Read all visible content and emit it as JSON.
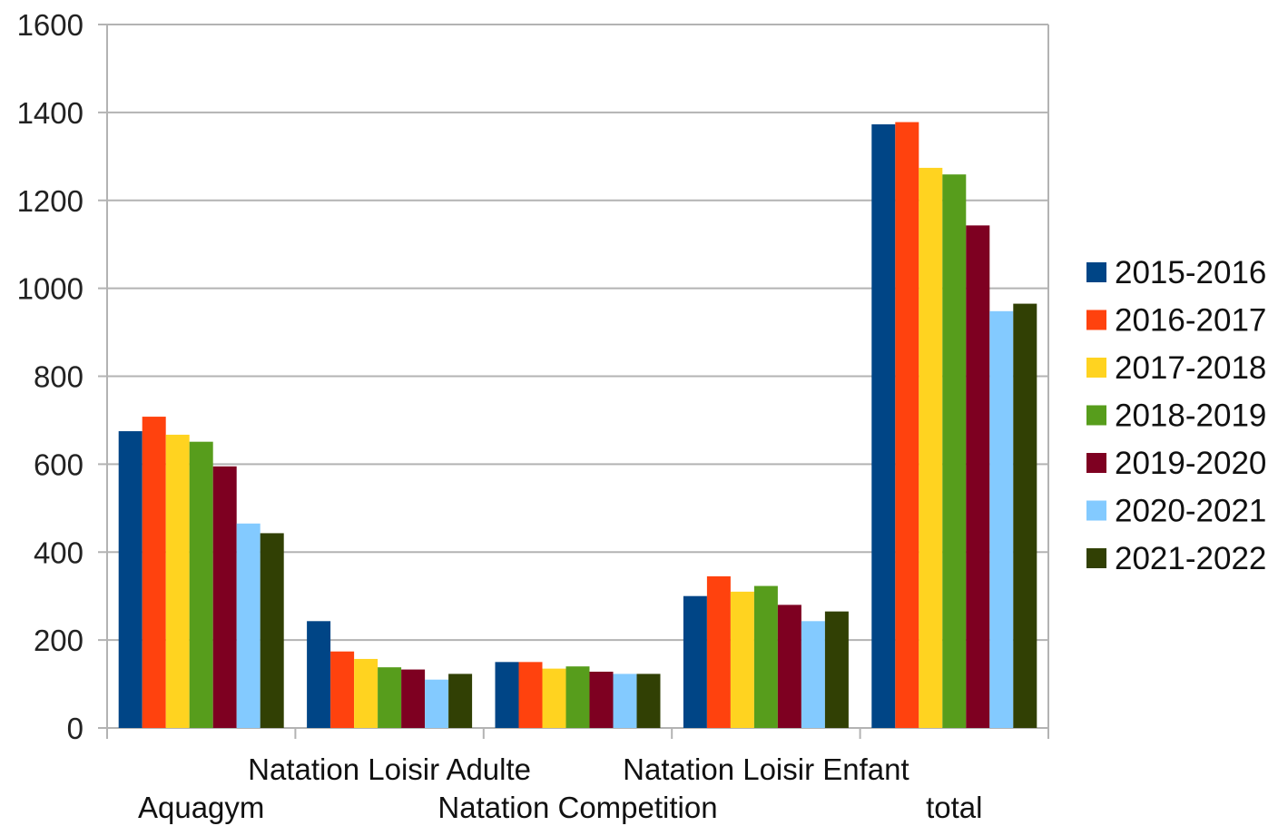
{
  "chart_data": {
    "type": "bar",
    "title": "",
    "xlabel": "",
    "ylabel": "",
    "ylim": [
      0,
      1600
    ],
    "yticks": [
      0,
      200,
      400,
      600,
      800,
      1000,
      1200,
      1400,
      1600
    ],
    "grid": true,
    "legend_position": "right",
    "categories": [
      "Aquagym",
      "Natation Loisir Adulte",
      "Natation Competition",
      "Natation Loisir Enfant",
      "total"
    ],
    "series": [
      {
        "name": "2015-2016",
        "color": "#004586",
        "values": [
          675,
          243,
          150,
          300,
          1373
        ]
      },
      {
        "name": "2016-2017",
        "color": "#ff420e",
        "values": [
          708,
          174,
          150,
          345,
          1378
        ]
      },
      {
        "name": "2017-2018",
        "color": "#ffd320",
        "values": [
          667,
          157,
          135,
          310,
          1274
        ]
      },
      {
        "name": "2018-2019",
        "color": "#579d1c",
        "values": [
          651,
          138,
          140,
          323,
          1259
        ]
      },
      {
        "name": "2019-2020",
        "color": "#7e0021",
        "values": [
          595,
          133,
          128,
          280,
          1143
        ]
      },
      {
        "name": "2020-2021",
        "color": "#83caff",
        "values": [
          465,
          110,
          123,
          243,
          948
        ]
      },
      {
        "name": "2021-2022",
        "color": "#314004",
        "values": [
          443,
          123,
          123,
          265,
          965
        ]
      }
    ]
  }
}
